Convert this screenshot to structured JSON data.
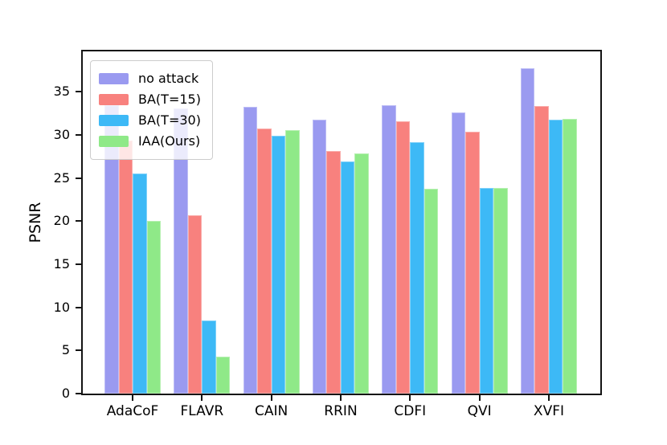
{
  "figure": {
    "background": "#ffffff"
  },
  "chart_data": {
    "type": "bar",
    "title": "",
    "xlabel": "",
    "ylabel": "PSNR",
    "categories": [
      "AdaCoF",
      "FLAVR",
      "CAIN",
      "RRIN",
      "CDFI",
      "QVI",
      "XVFI"
    ],
    "series": [
      {
        "name": "no attack",
        "color": "#9a9af0",
        "values": [
          33.5,
          33.1,
          33.3,
          31.8,
          33.5,
          32.6,
          37.7
        ]
      },
      {
        "name": "BA(T=15)",
        "color": "#f8817e",
        "values": [
          29.4,
          20.7,
          30.8,
          28.1,
          31.6,
          30.4,
          33.4
        ]
      },
      {
        "name": "BA(T=30)",
        "color": "#3db9f6",
        "values": [
          25.5,
          8.5,
          29.9,
          26.9,
          29.2,
          23.9,
          31.8
        ]
      },
      {
        "name": "IAA(Ours)",
        "color": "#8fe988",
        "values": [
          20.0,
          4.3,
          30.6,
          27.9,
          23.8,
          23.9,
          31.9
        ]
      }
    ],
    "ylim": [
      0,
      39.7
    ],
    "yticks": [
      0,
      5,
      10,
      15,
      20,
      25,
      30,
      35
    ],
    "grid": false,
    "legend_position": "upper-left",
    "spine_color": "#141414",
    "text_color": "#000000"
  }
}
